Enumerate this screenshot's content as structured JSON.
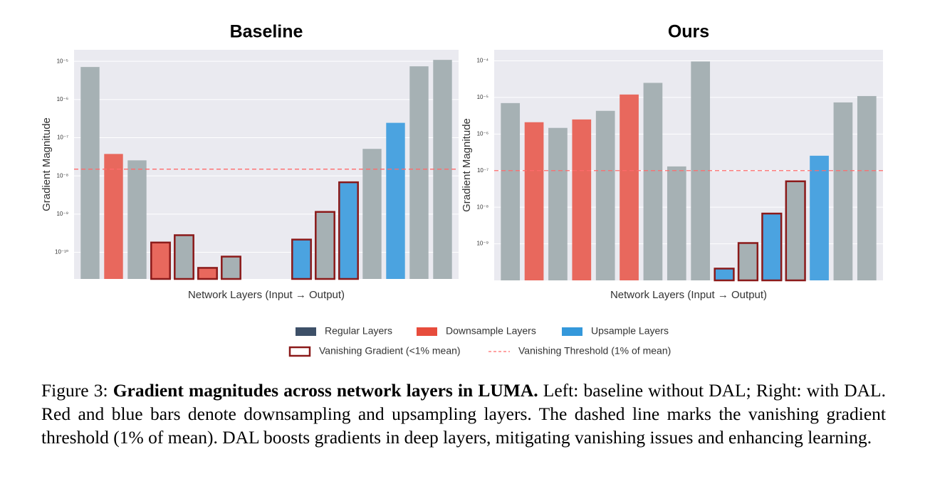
{
  "chart_data": [
    {
      "type": "bar",
      "title": "Baseline",
      "x_label": "Network Layers (Input → Output)",
      "y_label": "Gradient Magnitude",
      "log_scale": true,
      "grid": true,
      "ylim": [
        2e-11,
        2e-05
      ],
      "yticks": [
        {
          "value": 1e-05,
          "label": "10⁻⁵"
        },
        {
          "value": 1e-06,
          "label": "10⁻⁶"
        },
        {
          "value": 1e-07,
          "label": "10⁻⁷"
        },
        {
          "value": 1e-08,
          "label": "10⁻⁸"
        },
        {
          "value": 1e-09,
          "label": "10⁻⁹"
        },
        {
          "value": 1e-10,
          "label": "10⁻¹⁰"
        }
      ],
      "threshold": 1.5e-08,
      "series": [
        {
          "color": "#a6b1b4",
          "values": [
            7.1e-06,
            null,
            2.55e-08,
            null,
            2.8e-10,
            null,
            7.7e-11,
            null,
            null,
            null,
            1.14e-09,
            null,
            5.1e-08,
            null,
            7.4e-06,
            1.09e-05
          ]
        },
        {
          "color": "#e8685d",
          "values": [
            null,
            3.75e-08,
            null,
            1.8e-10,
            null,
            3.9e-11,
            null,
            null,
            null,
            null,
            null,
            null,
            null,
            null,
            null,
            null
          ]
        },
        {
          "color": "#4ba3e0",
          "values": [
            null,
            null,
            null,
            null,
            null,
            null,
            null,
            null,
            null,
            2.15e-10,
            null,
            6.8e-09,
            null,
            2.45e-07,
            null,
            null
          ]
        }
      ]
    },
    {
      "type": "bar",
      "title": "Ours",
      "x_label": "Network Layers (Input → Output)",
      "y_label": "Gradient Magnitude",
      "log_scale": true,
      "grid": true,
      "ylim": [
        1e-10,
        0.0002
      ],
      "yticks": [
        {
          "value": 0.0001,
          "label": "10⁻⁴"
        },
        {
          "value": 1e-05,
          "label": "10⁻⁵"
        },
        {
          "value": 1e-06,
          "label": "10⁻⁶"
        },
        {
          "value": 1e-07,
          "label": "10⁻⁷"
        },
        {
          "value": 1e-08,
          "label": "10⁻⁸"
        },
        {
          "value": 1e-09,
          "label": "10⁻⁹"
        }
      ],
      "threshold": 1e-07,
      "series": [
        {
          "color": "#a6b1b4",
          "values": [
            7e-06,
            null,
            1.47e-06,
            null,
            4.3e-06,
            null,
            2.5e-05,
            1.3e-07,
            9.6e-05,
            null,
            1.05e-09,
            null,
            5.1e-08,
            null,
            7.3e-06,
            1.09e-05
          ]
        },
        {
          "color": "#e8685d",
          "values": [
            null,
            2.1e-06,
            null,
            2.5e-06,
            null,
            1.2e-05,
            null,
            null,
            null,
            null,
            null,
            null,
            null,
            null,
            null,
            null
          ]
        },
        {
          "color": "#4ba3e0",
          "values": [
            null,
            null,
            null,
            null,
            null,
            null,
            null,
            null,
            null,
            2.1e-10,
            null,
            6.7e-09,
            null,
            2.55e-07,
            null,
            null
          ]
        }
      ]
    }
  ],
  "legend": [
    {
      "name": "Regular Layers",
      "color": "#3d5068"
    },
    {
      "name": "Downsample Layers",
      "color": "#e74c3c"
    },
    {
      "name": "Upsample Layers",
      "color": "#3498db"
    },
    {
      "name": "Vanishing Gradient (<1% mean)",
      "color": "#8b1a1a"
    },
    {
      "name": "Vanishing Threshold (1% of mean)",
      "color": "#ff6b6b"
    }
  ],
  "caption": {
    "label": "Figure 3:",
    "bold": "Gradient magnitudes across network layers in LUMA.",
    "text": "Left: baseline without DAL; Right: with DAL. Red and blue bars denote downsampling and upsampling layers. The dashed line marks the vanishing gradient threshold (1% of mean). DAL boosts gradients in deep layers, mitigating vanishing issues and enhancing learning."
  }
}
